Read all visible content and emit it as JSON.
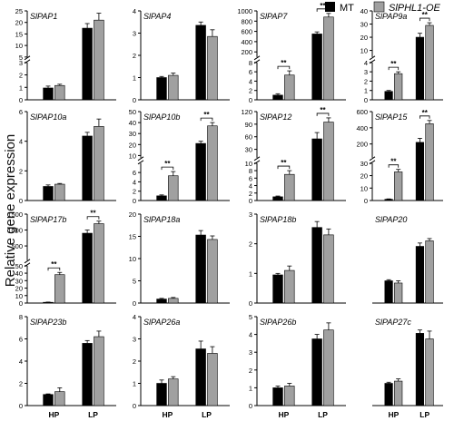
{
  "figure": {
    "ylabel": "Relative gene expression",
    "legend": [
      {
        "name": "MT",
        "color": "#000000"
      },
      {
        "name": "SlPHL1-OE",
        "color": "#a0a0a0"
      }
    ],
    "x_categories": [
      "HP",
      "LP"
    ],
    "significance_mark": "**"
  },
  "chart_data": [
    {
      "type": "bar",
      "title": "SlPAP1",
      "categories": [
        "HP",
        "LP"
      ],
      "series": [
        {
          "name": "MT",
          "values": [
            0.95,
            17.5
          ]
        },
        {
          "name": "SlPHL1-OE",
          "values": [
            1.15,
            21.0
          ]
        }
      ],
      "errors": [
        [
          0.15,
          2.0
        ],
        [
          0.1,
          3.0
        ]
      ],
      "axis": {
        "broken": true,
        "lower": [
          0,
          3
        ],
        "upper": [
          5,
          25
        ],
        "lower_ticks": [
          0,
          1,
          2,
          3
        ],
        "upper_ticks": [
          5,
          10,
          15,
          20,
          25
        ]
      },
      "sig": []
    },
    {
      "type": "bar",
      "title": "SlPAP4",
      "categories": [
        "HP",
        "LP"
      ],
      "series": [
        {
          "name": "MT",
          "values": [
            1.0,
            3.35
          ]
        },
        {
          "name": "SlPHL1-OE",
          "values": [
            1.1,
            2.85
          ]
        }
      ],
      "errors": [
        [
          0.05,
          0.15
        ],
        [
          0.1,
          0.3
        ]
      ],
      "axis": {
        "broken": false,
        "ylim": [
          0,
          4
        ],
        "ticks": [
          0,
          1,
          2,
          3,
          4
        ]
      },
      "sig": []
    },
    {
      "type": "bar",
      "title": "SlPAP7",
      "categories": [
        "HP",
        "LP"
      ],
      "series": [
        {
          "name": "MT",
          "values": [
            1.0,
            550
          ]
        },
        {
          "name": "SlPHL1-OE",
          "values": [
            5.3,
            880
          ]
        }
      ],
      "errors": [
        [
          0.3,
          40
        ],
        [
          0.9,
          70
        ]
      ],
      "axis": {
        "broken": true,
        "lower": [
          0,
          8
        ],
        "upper": [
          100,
          1000
        ],
        "lower_ticks": [
          0,
          2,
          4,
          6,
          8
        ],
        "upper_ticks": [
          200,
          400,
          600,
          800,
          1000
        ]
      },
      "sig": [
        "HP",
        "LP"
      ]
    },
    {
      "type": "bar",
      "title": "SlPAP9a",
      "categories": [
        "HP",
        "LP"
      ],
      "series": [
        {
          "name": "MT",
          "values": [
            0.9,
            20
          ]
        },
        {
          "name": "SlPHL1-OE",
          "values": [
            2.8,
            29
          ]
        }
      ],
      "errors": [
        [
          0.1,
          3
        ],
        [
          0.2,
          2
        ]
      ],
      "axis": {
        "broken": true,
        "lower": [
          0,
          4
        ],
        "upper": [
          5,
          40
        ],
        "lower_ticks": [
          0,
          1,
          2,
          3,
          4
        ],
        "upper_ticks": [
          10,
          20,
          30,
          40
        ]
      },
      "sig": [
        "HP",
        "LP"
      ]
    },
    {
      "type": "bar",
      "title": "SlPAP10a",
      "categories": [
        "HP",
        "LP"
      ],
      "series": [
        {
          "name": "MT",
          "values": [
            0.95,
            4.35
          ]
        },
        {
          "name": "SlPHL1-OE",
          "values": [
            1.1,
            5.0
          ]
        }
      ],
      "errors": [
        [
          0.1,
          0.25
        ],
        [
          0.05,
          0.5
        ]
      ],
      "axis": {
        "broken": false,
        "ylim": [
          0,
          6
        ],
        "ticks": [
          0,
          2,
          4,
          6
        ]
      },
      "sig": []
    },
    {
      "type": "bar",
      "title": "SlPAP10b",
      "categories": [
        "HP",
        "LP"
      ],
      "series": [
        {
          "name": "MT",
          "values": [
            1.0,
            21
          ]
        },
        {
          "name": "SlPHL1-OE",
          "values": [
            5.3,
            37
          ]
        }
      ],
      "errors": [
        [
          0.2,
          2
        ],
        [
          0.9,
          3
        ]
      ],
      "axis": {
        "broken": true,
        "lower": [
          0,
          8
        ],
        "upper": [
          8,
          50
        ],
        "lower_ticks": [
          0,
          2,
          4,
          6
        ],
        "upper_ticks": [
          10,
          20,
          30,
          40,
          50
        ]
      },
      "sig": [
        "HP",
        "LP"
      ]
    },
    {
      "type": "bar",
      "title": "SlPAP12",
      "categories": [
        "HP",
        "LP"
      ],
      "series": [
        {
          "name": "MT",
          "values": [
            1.0,
            55
          ]
        },
        {
          "name": "SlPHL1-OE",
          "values": [
            7.0,
            95
          ]
        }
      ],
      "errors": [
        [
          0.2,
          15
        ],
        [
          1.0,
          10
        ]
      ],
      "axis": {
        "broken": true,
        "lower": [
          0,
          10
        ],
        "upper": [
          10,
          120
        ],
        "lower_ticks": [
          0,
          2,
          4,
          6,
          8,
          10
        ],
        "upper_ticks": [
          30,
          60,
          90,
          120
        ]
      },
      "sig": [
        "HP",
        "LP"
      ]
    },
    {
      "type": "bar",
      "title": "SlPAP15",
      "categories": [
        "HP",
        "LP"
      ],
      "series": [
        {
          "name": "MT",
          "values": [
            1.0,
            220
          ]
        },
        {
          "name": "SlPHL1-OE",
          "values": [
            23,
            450
          ]
        }
      ],
      "errors": [
        [
          0.3,
          50
        ],
        [
          2,
          40
        ]
      ],
      "axis": {
        "broken": true,
        "lower": [
          0,
          30
        ],
        "upper": [
          30,
          600
        ],
        "lower_ticks": [
          0,
          10,
          20,
          30
        ],
        "upper_ticks": [
          200,
          400,
          600
        ]
      },
      "sig": [
        "HP",
        "LP"
      ]
    },
    {
      "type": "bar",
      "title": "SlPAP17b",
      "categories": [
        "HP",
        "LP"
      ],
      "series": [
        {
          "name": "MT",
          "values": [
            1.0,
            900
          ]
        },
        {
          "name": "SlPHL1-OE",
          "values": [
            38,
            1200
          ]
        }
      ],
      "errors": [
        [
          0.3,
          100
        ],
        [
          3,
          80
        ]
      ],
      "axis": {
        "broken": true,
        "lower": [
          0,
          50
        ],
        "upper": [
          50,
          1500
        ],
        "lower_ticks": [
          0,
          10,
          20,
          30,
          40,
          50
        ],
        "upper_ticks": [
          500,
          1000,
          1500
        ]
      },
      "sig": [
        "HP",
        "LP"
      ]
    },
    {
      "type": "bar",
      "title": "SlPAP18a",
      "categories": [
        "HP",
        "LP"
      ],
      "series": [
        {
          "name": "MT",
          "values": [
            0.9,
            15.3
          ]
        },
        {
          "name": "SlPHL1-OE",
          "values": [
            1.05,
            14.3
          ]
        }
      ],
      "errors": [
        [
          0.15,
          1.0
        ],
        [
          0.2,
          0.8
        ]
      ],
      "axis": {
        "broken": false,
        "ylim": [
          0,
          20
        ],
        "ticks": [
          0,
          5,
          10,
          15,
          20
        ]
      },
      "sig": []
    },
    {
      "type": "bar",
      "title": "SlPAP18b",
      "categories": [
        "HP",
        "LP"
      ],
      "series": [
        {
          "name": "MT",
          "values": [
            0.95,
            2.55
          ]
        },
        {
          "name": "SlPHL1-OE",
          "values": [
            1.1,
            2.3
          ]
        }
      ],
      "errors": [
        [
          0.05,
          0.2
        ],
        [
          0.15,
          0.2
        ]
      ],
      "axis": {
        "broken": false,
        "ylim": [
          0,
          3
        ],
        "ticks": [
          0,
          1,
          2,
          3
        ]
      },
      "sig": []
    },
    {
      "type": "bar",
      "title": "SlPAP20",
      "categories": [
        "HP",
        "LP"
      ],
      "series": [
        {
          "name": "MT",
          "values": [
            1.0,
            2.55
          ]
        },
        {
          "name": "SlPHL1-OE",
          "values": [
            0.9,
            2.8
          ]
        }
      ],
      "errors": [
        [
          0.05,
          0.15
        ],
        [
          0.1,
          0.1
        ]
      ],
      "axis": {
        "broken": false,
        "ylim": [
          0,
          4
        ],
        "ticks": []
      },
      "sig": []
    },
    {
      "type": "bar",
      "title": "SlPAP23b",
      "categories": [
        "HP",
        "LP"
      ],
      "series": [
        {
          "name": "MT",
          "values": [
            1.0,
            5.6
          ]
        },
        {
          "name": "SlPHL1-OE",
          "values": [
            1.25,
            6.2
          ]
        }
      ],
      "errors": [
        [
          0.05,
          0.25
        ],
        [
          0.35,
          0.5
        ]
      ],
      "axis": {
        "broken": false,
        "ylim": [
          0,
          8
        ],
        "ticks": [
          0,
          2,
          4,
          6,
          8
        ]
      },
      "sig": []
    },
    {
      "type": "bar",
      "title": "SlPAP26a",
      "categories": [
        "HP",
        "LP"
      ],
      "series": [
        {
          "name": "MT",
          "values": [
            1.0,
            2.55
          ]
        },
        {
          "name": "SlPHL1-OE",
          "values": [
            1.2,
            2.35
          ]
        }
      ],
      "errors": [
        [
          0.15,
          0.35
        ],
        [
          0.1,
          0.3
        ]
      ],
      "axis": {
        "broken": false,
        "ylim": [
          0,
          4
        ],
        "ticks": [
          0,
          1,
          2,
          3,
          4
        ]
      },
      "sig": []
    },
    {
      "type": "bar",
      "title": "SlPAP26b",
      "categories": [
        "HP",
        "LP"
      ],
      "series": [
        {
          "name": "MT",
          "values": [
            1.0,
            3.75
          ]
        },
        {
          "name": "SlPHL1-OE",
          "values": [
            1.1,
            4.25
          ]
        }
      ],
      "errors": [
        [
          0.1,
          0.25
        ],
        [
          0.15,
          0.4
        ]
      ],
      "axis": {
        "broken": false,
        "ylim": [
          0,
          5
        ],
        "ticks": [
          0,
          1,
          2,
          3,
          4,
          5
        ]
      },
      "sig": []
    },
    {
      "type": "bar",
      "title": "SlPAP27c",
      "categories": [
        "HP",
        "LP"
      ],
      "series": [
        {
          "name": "MT",
          "values": [
            1.0,
            3.25
          ]
        },
        {
          "name": "SlPHL1-OE",
          "values": [
            1.1,
            3.0
          ]
        }
      ],
      "errors": [
        [
          0.05,
          0.15
        ],
        [
          0.1,
          0.35
        ]
      ],
      "axis": {
        "broken": false,
        "ylim": [
          0,
          4
        ],
        "ticks": []
      },
      "sig": []
    }
  ]
}
